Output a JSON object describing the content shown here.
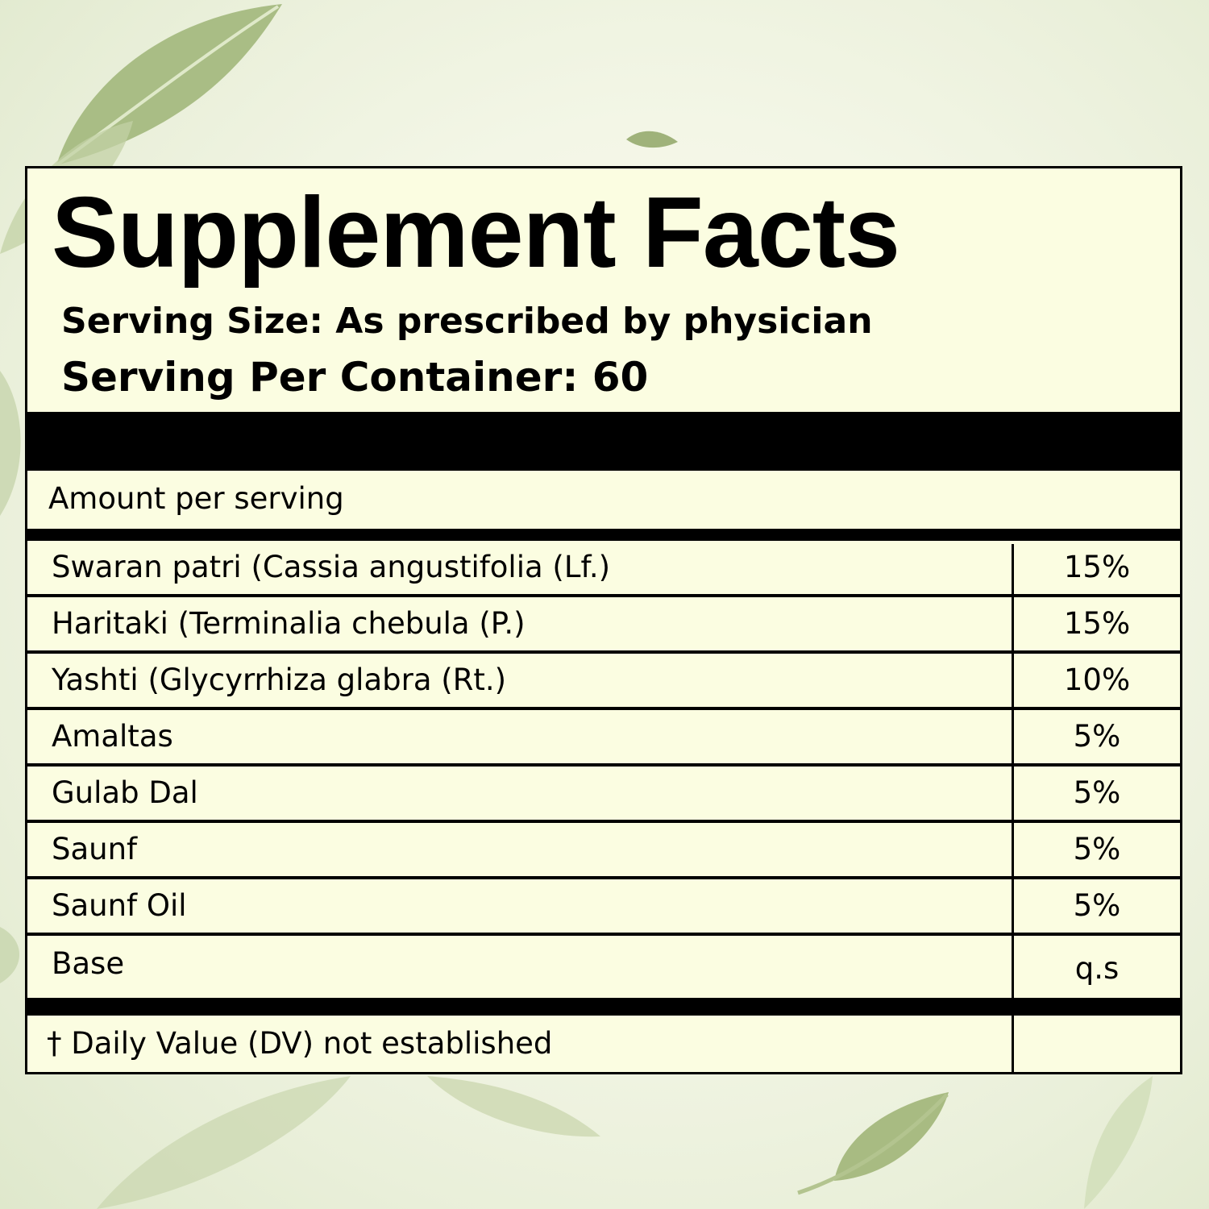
{
  "label": {
    "title": "Supplement Facts",
    "serving_size": "Serving Size:  As prescribed by physician",
    "serving_per_container": "Serving Per Container: 60",
    "amount_header": "Amount per serving",
    "ingredients": [
      {
        "name": "Swaran patri (Cassia angustifolia (Lf.)",
        "amount": "15%"
      },
      {
        "name": "Haritaki (Terminalia chebula (P.)",
        "amount": "15%"
      },
      {
        "name": "Yashti (Glycyrrhiza glabra (Rt.)",
        "amount": "10%"
      },
      {
        "name": "Amaltas",
        "amount": "5%"
      },
      {
        "name": "Gulab Dal",
        "amount": "5%"
      },
      {
        "name": "Saunf",
        "amount": "5%"
      },
      {
        "name": "Saunf Oil",
        "amount": "5%"
      },
      {
        "name": "Base",
        "amount": "q.s"
      }
    ],
    "footnote": "† Daily Value (DV) not established"
  },
  "colors": {
    "panel_background": "#fbfde1",
    "ink": "#000000",
    "leaf_green": "#9fb37a"
  },
  "decorations": [
    "leaf-icon"
  ]
}
